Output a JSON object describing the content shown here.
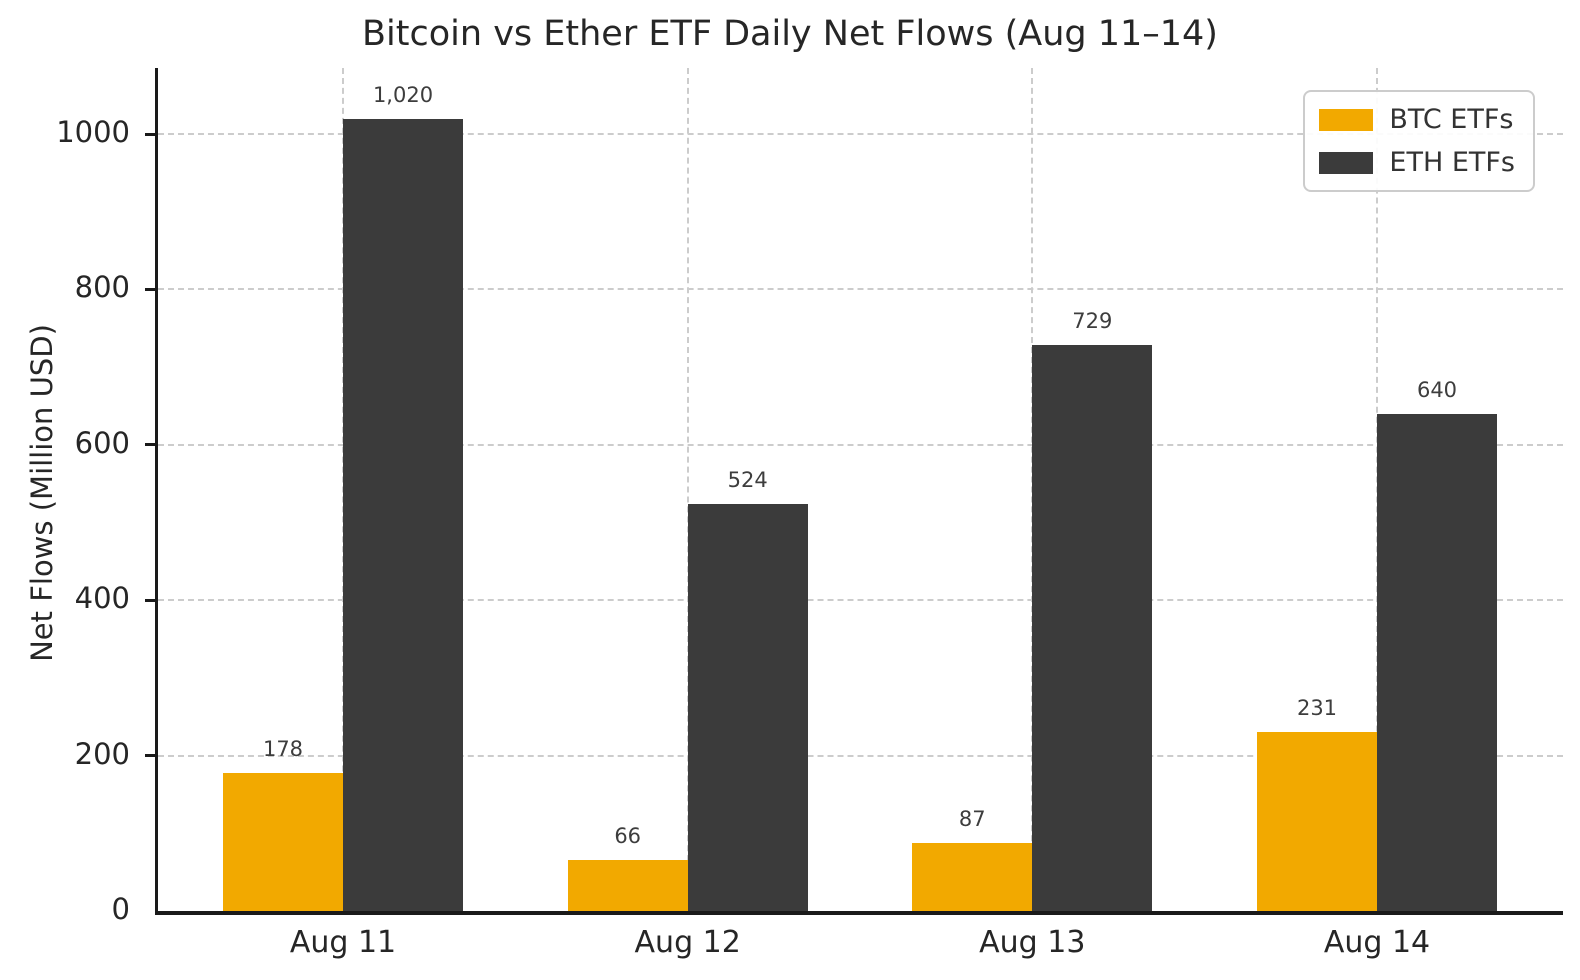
{
  "chart_data": {
    "type": "bar",
    "title": "Bitcoin vs Ether ETF Daily Net Flows (Aug 11–14)",
    "xlabel": "",
    "ylabel": "Net Flows (Million USD)",
    "categories": [
      "Aug 11",
      "Aug 12",
      "Aug 13",
      "Aug 14"
    ],
    "series": [
      {
        "name": "BTC ETFs",
        "color": "#F2A900",
        "values": [
          178,
          66,
          87,
          231
        ],
        "labels": [
          "178",
          "66",
          "87",
          "231"
        ]
      },
      {
        "name": "ETH ETFs",
        "color": "#3B3B3B",
        "values": [
          1020,
          524,
          729,
          640
        ],
        "labels": [
          "1,020",
          "524",
          "729",
          "640"
        ]
      }
    ],
    "ylim": [
      0,
      1085
    ],
    "yticks": [
      0,
      200,
      400,
      600,
      800,
      1000
    ],
    "grid": "dashed, horizontal and vertical",
    "legend_position": "upper right"
  },
  "colors": {
    "background": "#ffffff",
    "grid": "#cccccc",
    "axis": "#1a1a1a",
    "text": "#262626",
    "bar_label": "#3d3d3d"
  }
}
